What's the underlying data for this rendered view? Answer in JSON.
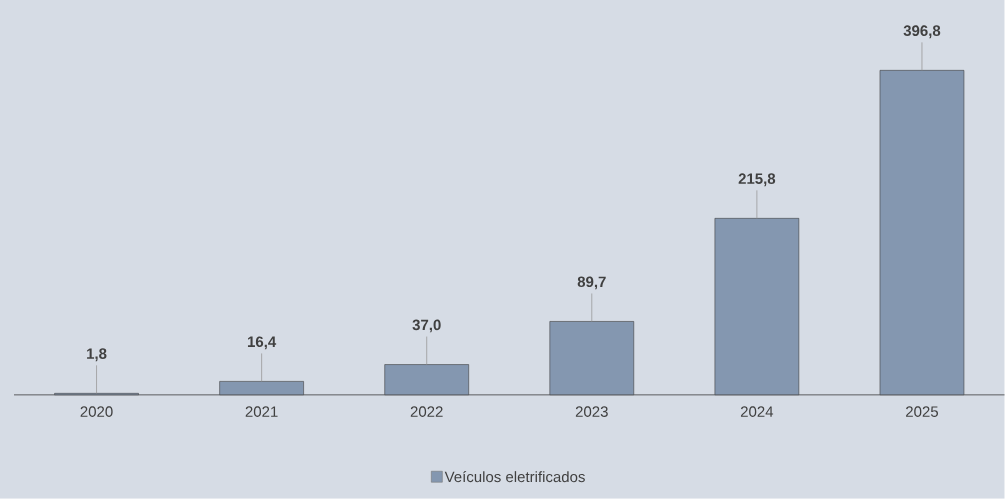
{
  "chart_data": {
    "type": "bar",
    "categories": [
      "2020",
      "2021",
      "2022",
      "2023",
      "2024",
      "2025"
    ],
    "series": [
      {
        "name": "Veículos eletrificados",
        "color": "#8497b0",
        "values": [
          1.8,
          16.4,
          37.0,
          89.7,
          215.8,
          396.8
        ],
        "value_labels": [
          "1,8",
          "16,4",
          "37,0",
          "89,7",
          "215,8",
          "396,8"
        ]
      }
    ],
    "tick_labels": "x",
    "grid": false,
    "legend": "bottom"
  }
}
